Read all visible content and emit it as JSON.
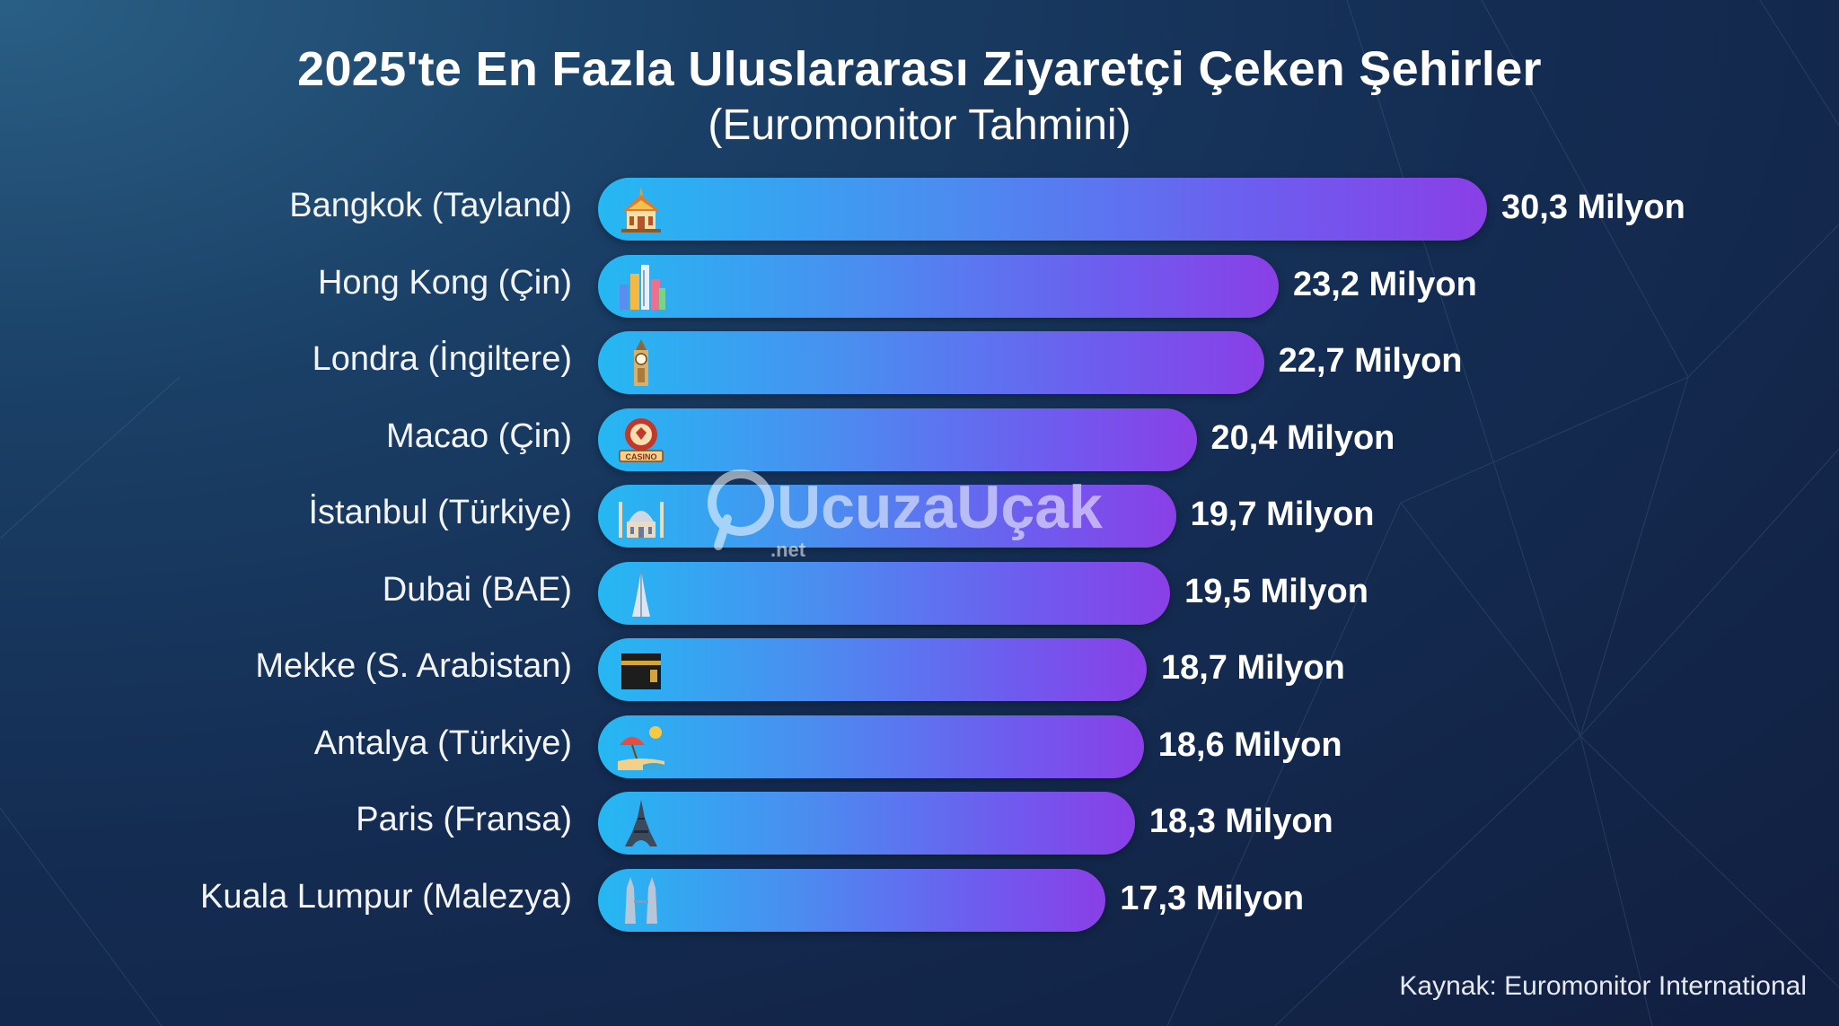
{
  "title": "2025'te En Fazla Uluslararası Ziyaretçi Çeken Şehirler",
  "subtitle": "(Euromonitor Tahmini)",
  "source": "Kaynak: Euromonitor International",
  "watermark": {
    "brand": "UcuzaUçak",
    "suffix": ".net"
  },
  "colors": {
    "bar_start": "#25b8f2",
    "bar_end": "#8a3fe6",
    "background": "#142c52"
  },
  "chart_data": {
    "type": "bar",
    "orientation": "horizontal",
    "unit": "Milyon",
    "categories": [
      "Bangkok (Tayland)",
      "Hong Kong (Çin)",
      "Londra (İngiltere)",
      "Macao (Çin)",
      "İstanbul (Türkiye)",
      "Dubai (BAE)",
      "Mekke (S. Arabistan)",
      "Antalya (Türkiye)",
      "Paris (Fransa)",
      "Kuala Lumpur (Malezya)"
    ],
    "values": [
      30.3,
      23.2,
      22.7,
      20.4,
      19.7,
      19.5,
      18.7,
      18.6,
      18.3,
      17.3
    ],
    "value_labels": [
      "30,3 Milyon",
      "23,2 Milyon",
      "22,7 Milyon",
      "20,4 Milyon",
      "19,7 Milyon",
      "19,5 Milyon",
      "18,7 Milyon",
      "18,6 Milyon",
      "18,3 Milyon",
      "17,3 Milyon"
    ],
    "icons": [
      "thai-temple-icon",
      "skyline-icon",
      "big-ben-icon",
      "casino-icon",
      "mosque-icon",
      "burj-khalifa-icon",
      "kaaba-icon",
      "beach-umbrella-icon",
      "eiffel-tower-icon",
      "petronas-towers-icon"
    ],
    "grid": false,
    "legend": "none"
  }
}
